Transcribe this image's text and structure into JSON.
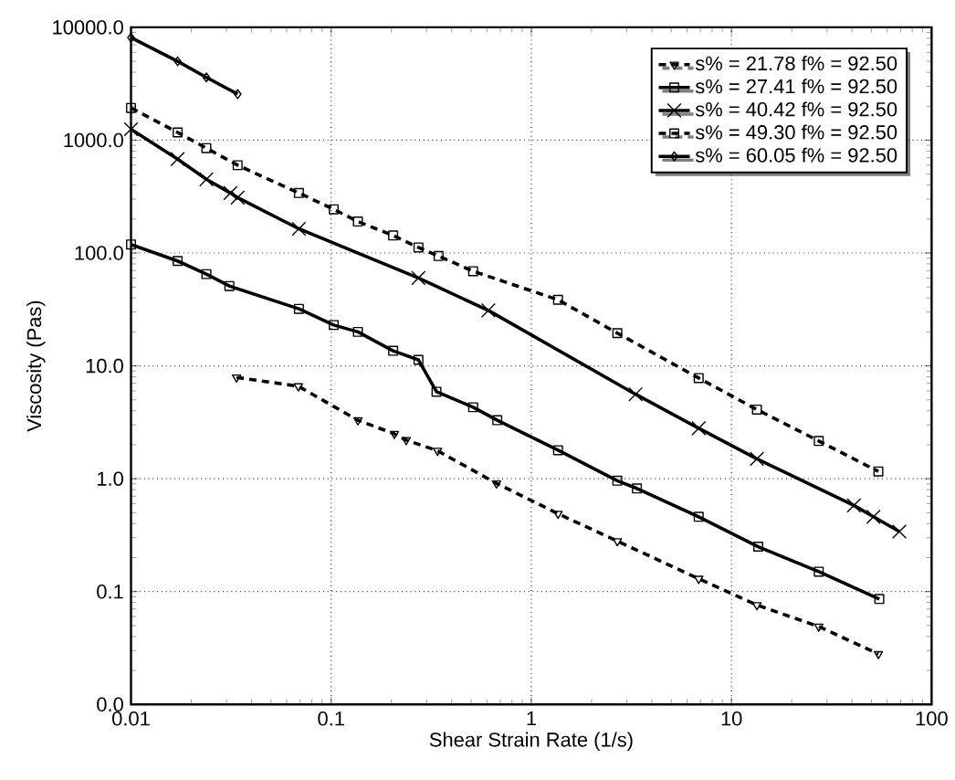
{
  "chart_data": {
    "type": "line",
    "xlabel": "Shear Strain Rate (1/s)",
    "ylabel": "Viscosity (Pas)",
    "log": "xy",
    "grid": true,
    "legend": "top right",
    "xlim": [
      0.01,
      100
    ],
    "xticks": [
      0.01,
      0.1,
      1,
      10,
      100
    ],
    "ylim": [
      0.01,
      10000
    ],
    "yticks": [
      {
        "value": 0.01,
        "label": "0.0"
      },
      {
        "value": 0.1,
        "label": "0.1"
      },
      {
        "value": 1,
        "label": "1.0"
      },
      {
        "value": 10,
        "label": "10.0"
      },
      {
        "value": 100,
        "label": "100.0"
      },
      {
        "value": 1000,
        "label": "1000.0"
      },
      {
        "value": 10000,
        "label": "10000.0"
      }
    ],
    "series": [
      {
        "name": "s% = 21.78 f% = 92.50",
        "color": "#000000",
        "marker": "triangle",
        "line_style": "dashed",
        "x": [
          0.0337,
          0.0686,
          0.136,
          0.207,
          0.237,
          0.34,
          0.67,
          1.36,
          2.69,
          6.86,
          13.4,
          27.3,
          54.2
        ],
        "values": [
          7.9,
          6.6,
          3.3,
          2.5,
          2.2,
          1.77,
          0.91,
          0.49,
          0.28,
          0.13,
          0.076,
          0.049,
          0.028
        ]
      },
      {
        "name": "s% = 27.41 f% = 92.50",
        "color": "#000000",
        "marker": "square",
        "line_style": "solid",
        "x": [
          0.01,
          0.0171,
          0.0238,
          0.031,
          0.069,
          0.103,
          0.136,
          0.204,
          0.273,
          0.336,
          0.512,
          0.676,
          1.36,
          2.69,
          3.37,
          6.86,
          13.6,
          27.3,
          54.8
        ],
        "values": [
          119,
          85,
          65,
          51,
          32,
          23,
          20,
          13.6,
          11.3,
          5.9,
          4.3,
          3.3,
          1.79,
          0.96,
          0.82,
          0.46,
          0.25,
          0.15,
          0.086
        ]
      },
      {
        "name": "s% = 40.42 f% = 92.50",
        "color": "#000000",
        "marker": "cross",
        "line_style": "solid",
        "x": [
          0.01,
          0.0171,
          0.0238,
          0.0314,
          0.0341,
          0.069,
          0.273,
          0.61,
          3.32,
          6.86,
          13.4,
          40.9,
          51.2,
          69
        ],
        "values": [
          1250,
          680,
          450,
          340,
          310,
          164,
          60,
          31,
          5.6,
          2.8,
          1.5,
          0.58,
          0.46,
          0.34
        ]
      },
      {
        "name": "s% = 49.30 f% = 92.50",
        "color": "#000000",
        "marker": "square",
        "line_style": "dashed",
        "x": [
          0.01,
          0.0171,
          0.0238,
          0.0341,
          0.069,
          0.103,
          0.136,
          0.204,
          0.273,
          0.344,
          0.512,
          1.36,
          2.69,
          6.86,
          13.4,
          27.3,
          54.2
        ],
        "values": [
          1930,
          1170,
          850,
          600,
          340,
          244,
          190,
          143,
          112,
          94,
          69,
          38.5,
          19.5,
          7.8,
          4.1,
          2.16,
          1.16
        ]
      },
      {
        "name": "s% = 60.05 f% = 92.50",
        "color": "#000000",
        "marker": "diamond",
        "line_style": "solid",
        "x": [
          0.01,
          0.0171,
          0.0238,
          0.0341
        ],
        "values": [
          8100,
          5000,
          3600,
          2560
        ]
      }
    ]
  }
}
